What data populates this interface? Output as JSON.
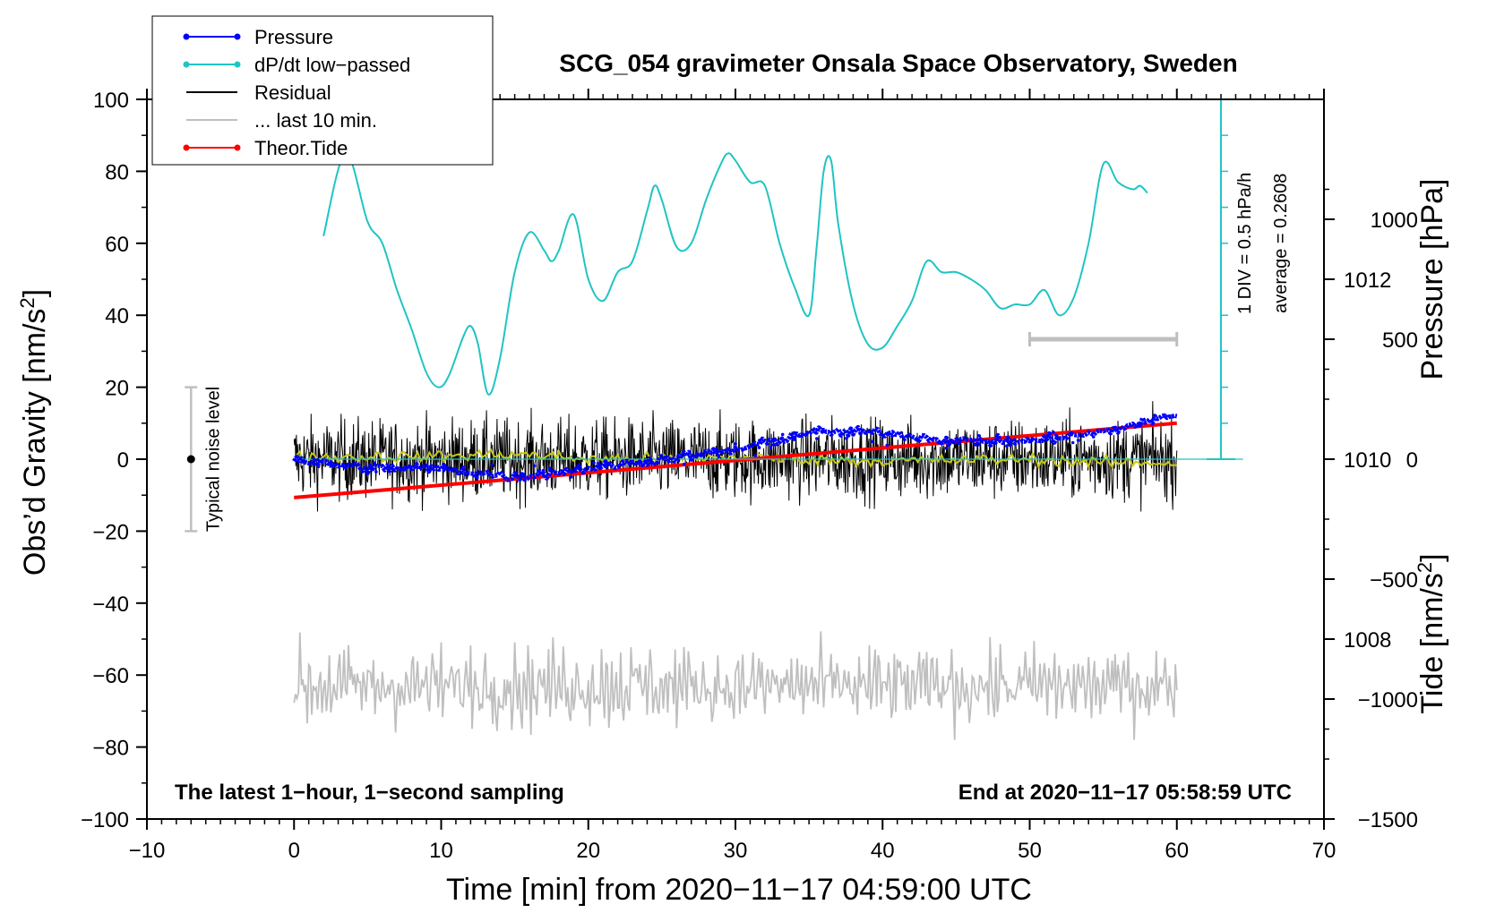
{
  "chart_data": {
    "type": "line",
    "title": "SCG_054 gravimeter Onsala Space Observatory, Sweden",
    "xlabel": "Time [min] from 2020−11−17 04:59:00 UTC",
    "ylabel_left": "Obs’d Gravity [nm/s²]",
    "ylabel_left_parts": {
      "pre": "Obs’d Gravity [nm/s",
      "sup": "2",
      "post": "]"
    },
    "ylabel_pressure": "Pressure [hPa]",
    "ylabel_tide": "Tide [nm/s²]",
    "ylabel_tide_parts": {
      "pre": "Tide [nm/s",
      "sup": "2",
      "post": "]"
    },
    "xlim": [
      -10,
      70
    ],
    "ylim": [
      -100,
      100
    ],
    "x_ticks": [
      -10,
      0,
      10,
      20,
      30,
      40,
      50,
      60,
      70
    ],
    "x_tick_labels": [
      "−10",
      "0",
      "10",
      "20",
      "30",
      "40",
      "50",
      "60",
      "70"
    ],
    "y_ticks": [
      -100,
      -80,
      -60,
      -40,
      -20,
      0,
      20,
      40,
      60,
      80,
      100
    ],
    "y_tick_labels": [
      "−100",
      "−80",
      "−60",
      "−40",
      "−20",
      "0",
      "20",
      "40",
      "60",
      "80",
      "100"
    ],
    "pressure_axis": {
      "range": [
        1006,
        1014
      ],
      "ticks": [
        1008,
        1010,
        1012
      ],
      "tick_labels": [
        "1008",
        "1010",
        "1012"
      ]
    },
    "tide_axis": {
      "range": [
        -1500,
        1500
      ],
      "ticks": [
        -1500,
        -1000,
        -500,
        0,
        500,
        1000
      ],
      "tick_labels": [
        "−1500",
        "−1000",
        "−500",
        "0",
        "500",
        "1000"
      ]
    },
    "legend": {
      "placement": "top-left",
      "entries": [
        {
          "label": "Pressure",
          "color": "#0000ff",
          "marker": true
        },
        {
          "label": "dP/dt low−passed",
          "color": "#20c4c4",
          "marker": true
        },
        {
          "label": "Residual",
          "color": "#000000",
          "marker": false
        },
        {
          "label": "... last 10 min.",
          "color": "#bfbfbf",
          "marker": false
        },
        {
          "label": "Theor.Tide",
          "color": "#ff0000",
          "marker": true
        }
      ]
    },
    "series": [
      {
        "name": "Pressure",
        "axis": "pressure",
        "color": "#0000ff",
        "points": [
          [
            0,
            1010.0
          ],
          [
            5,
            1009.9
          ],
          [
            10,
            1009.9
          ],
          [
            15,
            1009.8
          ],
          [
            20,
            1009.9
          ],
          [
            25,
            1010.0
          ],
          [
            30,
            1010.1
          ],
          [
            35,
            1010.3
          ],
          [
            40,
            1010.3
          ],
          [
            45,
            1010.2
          ],
          [
            50,
            1010.2
          ],
          [
            55,
            1010.3
          ],
          [
            60,
            1010.5
          ]
        ]
      },
      {
        "name": "dP/dt low−passed",
        "axis": "dpdt",
        "color": "#20c4c4",
        "baseline_pressure": 1010,
        "points": [
          [
            2,
            62
          ],
          [
            3.5,
            85
          ],
          [
            5,
            66
          ],
          [
            6,
            60
          ],
          [
            7,
            47
          ],
          [
            8,
            36
          ],
          [
            9,
            24
          ],
          [
            9.8,
            20
          ],
          [
            10.5,
            23
          ],
          [
            11.5,
            34
          ],
          [
            12,
            37
          ],
          [
            12.5,
            32
          ],
          [
            13.2,
            18
          ],
          [
            14,
            28
          ],
          [
            15,
            52
          ],
          [
            16,
            63
          ],
          [
            17,
            58
          ],
          [
            17.5,
            55
          ],
          [
            18,
            58
          ],
          [
            19,
            68
          ],
          [
            20,
            50
          ],
          [
            21,
            44
          ],
          [
            22,
            52
          ],
          [
            23,
            55
          ],
          [
            24,
            69
          ],
          [
            24.5,
            76
          ],
          [
            25,
            72
          ],
          [
            26,
            59
          ],
          [
            27,
            60
          ],
          [
            28,
            72
          ],
          [
            29,
            82
          ],
          [
            29.5,
            85
          ],
          [
            30,
            83
          ],
          [
            31,
            77
          ],
          [
            32,
            76
          ],
          [
            33,
            60
          ],
          [
            34,
            48
          ],
          [
            35,
            40
          ],
          [
            35.5,
            58
          ],
          [
            36,
            80
          ],
          [
            36.5,
            83
          ],
          [
            37,
            65
          ],
          [
            38,
            43
          ],
          [
            39,
            32
          ],
          [
            40,
            31
          ],
          [
            41,
            37
          ],
          [
            42,
            44
          ],
          [
            43,
            55
          ],
          [
            44,
            52
          ],
          [
            45,
            52
          ],
          [
            46,
            50
          ],
          [
            47,
            47
          ],
          [
            48,
            42
          ],
          [
            49,
            43
          ],
          [
            50,
            43
          ],
          [
            51,
            47
          ],
          [
            52,
            40
          ],
          [
            53,
            45
          ],
          [
            54,
            60
          ],
          [
            55,
            82
          ],
          [
            56,
            77
          ],
          [
            57,
            75
          ],
          [
            57.5,
            76
          ],
          [
            58,
            74
          ]
        ]
      },
      {
        "name": "Residual",
        "axis": "gravity",
        "color": "#000000",
        "x_range": [
          0,
          60
        ],
        "mean": 0,
        "typical_spread": 10,
        "range_approx": [
          -17,
          20
        ]
      },
      {
        "name": "Residual smoothed",
        "axis": "gravity",
        "color": "#c8c814",
        "points": [
          [
            0,
            0.5
          ],
          [
            10,
            0.8
          ],
          [
            15,
            1.5
          ],
          [
            20,
            0
          ],
          [
            30,
            0.5
          ],
          [
            40,
            -0.5
          ],
          [
            50,
            0
          ],
          [
            55,
            -1
          ],
          [
            60,
            -1
          ]
        ]
      },
      {
        "name": "... last 10 min.",
        "axis": "gravity",
        "color": "#bfbfbf",
        "x_range": [
          0,
          60
        ],
        "mean": -63,
        "range_approx": [
          -78,
          -44
        ]
      },
      {
        "name": "Theor.Tide",
        "axis": "tide",
        "color": "#ff0000",
        "points": [
          [
            0,
            -160
          ],
          [
            60,
            150
          ]
        ]
      }
    ],
    "annotations": {
      "noise_label": "Typical noise level",
      "noise_bar": {
        "x": -7,
        "center": 0,
        "low": -20,
        "high": 20
      },
      "dpdt_scale": "1 DIV = 0.5 hPa/h",
      "dpdt_average": "average = 0.2608",
      "last10_bar": {
        "x_start": 50,
        "x_end": 60,
        "tide_value": 500
      },
      "bottom_left": "The latest 1−hour, 1−second sampling",
      "bottom_right": "End at 2020−11−17 05:58:59 UTC"
    }
  }
}
